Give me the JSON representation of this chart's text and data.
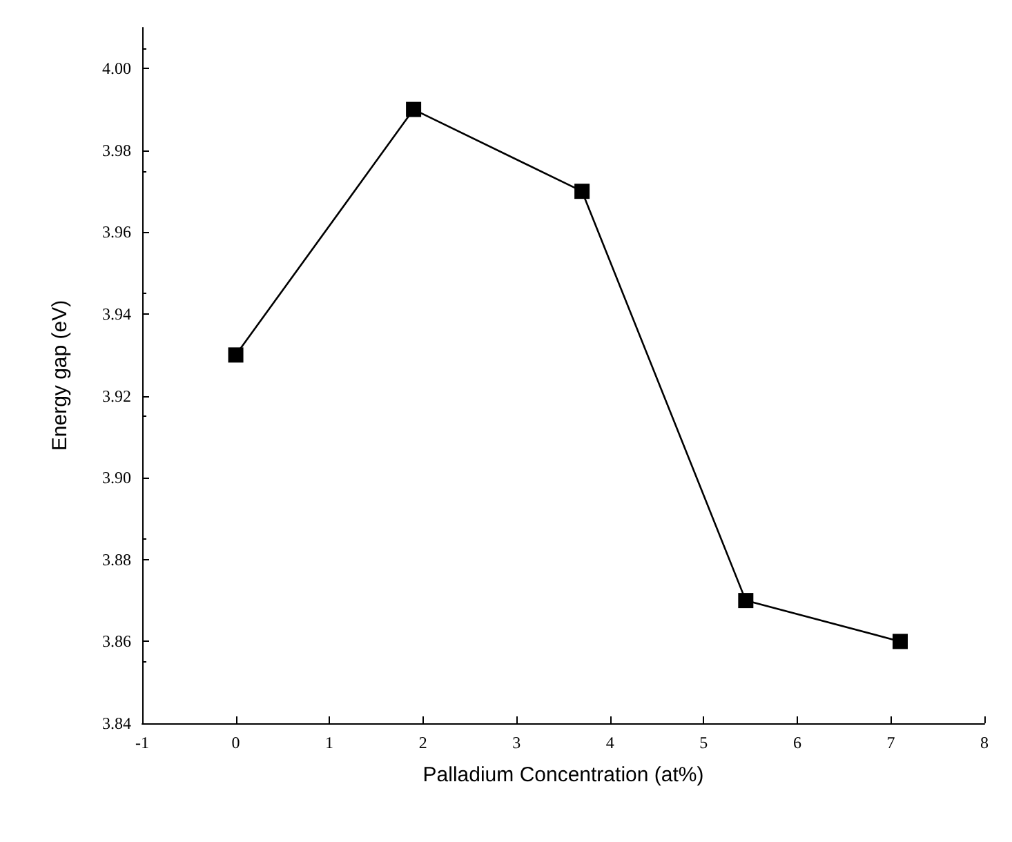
{
  "chart_data": {
    "type": "line",
    "xlabel": "Palladium Concentration (at%)",
    "ylabel": "Energy gap (eV)",
    "x": [
      0,
      1.9,
      3.7,
      5.45,
      7.1
    ],
    "series": [
      {
        "color": "#000000",
        "values": [
          3.93,
          3.99,
          3.97,
          3.87,
          3.86
        ]
      }
    ],
    "xlim": [
      -1,
      8
    ],
    "xticks": [
      -1,
      0,
      1,
      2,
      3,
      4,
      5,
      6,
      7,
      8
    ],
    "ylim": [
      3.84,
      4.01
    ],
    "yticks": [
      {
        "value": 3.84,
        "label": "3.84"
      },
      {
        "value": 3.86,
        "label": "3.86"
      },
      {
        "value": 3.88,
        "label": "3.88"
      },
      {
        "value": 3.9,
        "label": "3.90"
      },
      {
        "value": 3.92,
        "label": "3.92"
      },
      {
        "value": 3.94,
        "label": "3.94"
      },
      {
        "value": 3.96,
        "label": "3.96"
      },
      {
        "value": 3.98,
        "label": "3.98"
      },
      {
        "value": 4,
        "label": "4.00"
      }
    ],
    "grid": false,
    "marker": "square",
    "line_style": "solid"
  }
}
